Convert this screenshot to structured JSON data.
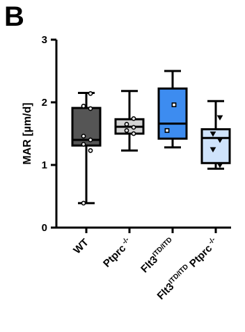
{
  "panel_label": "B",
  "chart_data": {
    "type": "box",
    "ylabel": "MAR [µm/d]",
    "ylim": [
      0,
      3
    ],
    "yticks": [
      0,
      1,
      2,
      3
    ],
    "grid": false,
    "categories": [
      {
        "base": "WT",
        "sup": ""
      },
      {
        "base": "Ptprc",
        "sup": " -/-"
      },
      {
        "base": "Flt3",
        "sup": "ITD/ITD"
      },
      {
        "base": "Flt3",
        "sup": "ITD/ITD",
        "tail": " Ptprc",
        "tailsup": " -/-"
      }
    ],
    "boxes": [
      {
        "min": 0.39,
        "q1": 1.31,
        "median": 1.4,
        "q3": 1.91,
        "max": 2.15,
        "color": "#555555",
        "marker": "circle",
        "points": [
          2.14,
          1.94,
          1.9,
          1.46,
          1.4,
          1.33,
          1.23,
          0.39
        ]
      },
      {
        "min": 1.23,
        "q1": 1.5,
        "median": 1.61,
        "q3": 1.73,
        "max": 2.18,
        "color": "#d3d3d3",
        "marker": "circle",
        "points": [
          1.74,
          1.65,
          1.6,
          1.55,
          1.5
        ]
      },
      {
        "min": 1.28,
        "q1": 1.42,
        "median": 1.66,
        "q3": 2.22,
        "max": 2.5,
        "color": "#3d8cf0",
        "marker": "square",
        "points": [
          1.96,
          1.55
        ]
      },
      {
        "min": 0.94,
        "q1": 1.03,
        "median": 1.43,
        "q3": 1.57,
        "max": 2.02,
        "color": "#cfe3fb",
        "marker": "triangle-down",
        "points": [
          1.76,
          1.5,
          1.4,
          1.25,
          1.0
        ]
      }
    ]
  }
}
